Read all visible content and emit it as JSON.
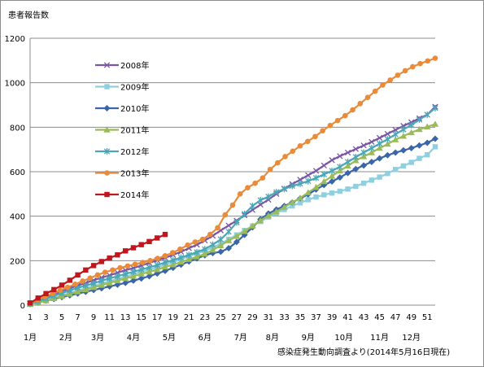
{
  "chart_data": {
    "type": "line",
    "title": "",
    "ylabel": "患者報告数",
    "xlabel": "",
    "ylim": [
      0,
      1200
    ],
    "y_ticks": [
      0,
      200,
      400,
      600,
      800,
      1000,
      1200
    ],
    "xlim": [
      1,
      52
    ],
    "x_ticks": [
      1,
      3,
      5,
      7,
      9,
      11,
      13,
      15,
      17,
      19,
      21,
      23,
      25,
      27,
      29,
      31,
      33,
      35,
      37,
      39,
      41,
      43,
      45,
      47,
      49,
      51
    ],
    "month_labels": [
      {
        "label": "1月",
        "week": 1
      },
      {
        "label": "2月",
        "week": 5.5
      },
      {
        "label": "3月",
        "week": 9.5
      },
      {
        "label": "4月",
        "week": 14
      },
      {
        "label": "5月",
        "week": 18.5
      },
      {
        "label": "6月",
        "week": 23
      },
      {
        "label": "7月",
        "week": 27.5
      },
      {
        "label": "8月",
        "week": 31.5
      },
      {
        "label": "9月",
        "week": 36
      },
      {
        "label": "10月",
        "week": 40.5
      },
      {
        "label": "11月",
        "week": 45
      },
      {
        "label": "12月",
        "week": 49
      }
    ],
    "grid": true,
    "legend": "upper-left inside plot",
    "source_note": "感染症発生動向調査より(2014年5月16日現在)",
    "series": [
      {
        "name": "2008年",
        "color": "#7a56a5",
        "marker": "x",
        "values": [
          8,
          20,
          33,
          48,
          62,
          76,
          88,
          100,
          112,
          124,
          134,
          146,
          157,
          167,
          178,
          190,
          202,
          213,
          226,
          240,
          256,
          272,
          291,
          312,
          336,
          358,
          380,
          404,
          428,
          452,
          474,
          500,
          524,
          544,
          564,
          584,
          604,
          628,
          652,
          670,
          686,
          702,
          718,
          734,
          752,
          770,
          788,
          806,
          822,
          840,
          856,
          892
        ]
      },
      {
        "name": "2009年",
        "color": "#8fd0e0",
        "marker": "square",
        "values": [
          6,
          15,
          24,
          34,
          44,
          55,
          66,
          76,
          86,
          97,
          108,
          118,
          128,
          139,
          150,
          160,
          170,
          182,
          194,
          206,
          220,
          232,
          244,
          260,
          276,
          296,
          316,
          336,
          356,
          376,
          396,
          414,
          430,
          446,
          460,
          474,
          486,
          496,
          504,
          512,
          522,
          534,
          548,
          562,
          576,
          592,
          610,
          626,
          642,
          660,
          676,
          712
        ]
      },
      {
        "name": "2010年",
        "color": "#3a66a8",
        "marker": "diamond",
        "values": [
          5,
          12,
          20,
          28,
          36,
          44,
          52,
          60,
          68,
          76,
          84,
          92,
          100,
          110,
          120,
          130,
          142,
          154,
          168,
          182,
          196,
          210,
          224,
          234,
          240,
          256,
          284,
          316,
          350,
          386,
          412,
          430,
          446,
          462,
          480,
          498,
          520,
          540,
          556,
          574,
          594,
          612,
          628,
          644,
          660,
          674,
          686,
          696,
          706,
          718,
          730,
          748
        ]
      },
      {
        "name": "2011年",
        "color": "#9bbb59",
        "marker": "triangle",
        "values": [
          4,
          12,
          20,
          30,
          40,
          50,
          60,
          70,
          80,
          90,
          100,
          110,
          120,
          130,
          140,
          150,
          160,
          172,
          182,
          194,
          206,
          218,
          230,
          248,
          268,
          290,
          310,
          332,
          356,
          380,
          402,
          420,
          440,
          462,
          482,
          506,
          530,
          556,
          580,
          604,
          626,
          650,
          668,
          686,
          706,
          724,
          744,
          760,
          776,
          790,
          802,
          814
        ]
      },
      {
        "name": "2012年",
        "color": "#4aa7b5",
        "marker": "asterisk",
        "values": [
          7,
          18,
          30,
          42,
          54,
          66,
          78,
          88,
          98,
          110,
          120,
          130,
          140,
          150,
          160,
          170,
          180,
          192,
          202,
          214,
          226,
          238,
          252,
          272,
          296,
          330,
          372,
          410,
          446,
          472,
          488,
          508,
          522,
          536,
          546,
          558,
          572,
          588,
          604,
          622,
          644,
          666,
          686,
          706,
          726,
          746,
          768,
          790,
          810,
          834,
          856,
          886
        ]
      },
      {
        "name": "2013年",
        "color": "#e98b39",
        "marker": "circle",
        "values": [
          9,
          24,
          38,
          52,
          66,
          80,
          94,
          108,
          122,
          136,
          148,
          158,
          168,
          176,
          184,
          192,
          200,
          210,
          222,
          236,
          252,
          270,
          284,
          296,
          318,
          348,
          406,
          450,
          500,
          528,
          548,
          572,
          610,
          640,
          668,
          692,
          716,
          736,
          758,
          784,
          808,
          830,
          852,
          878,
          906,
          934,
          962,
          990,
          1012,
          1034,
          1054,
          1072,
          1086,
          1098,
          1110
        ]
      },
      {
        "name": "2014年",
        "color": "#c0171e",
        "marker": "square",
        "values": [
          10,
          32,
          52,
          70,
          90,
          112,
          136,
          158,
          178,
          196,
          212,
          226,
          244,
          258,
          272,
          286,
          302,
          318
        ]
      }
    ]
  }
}
